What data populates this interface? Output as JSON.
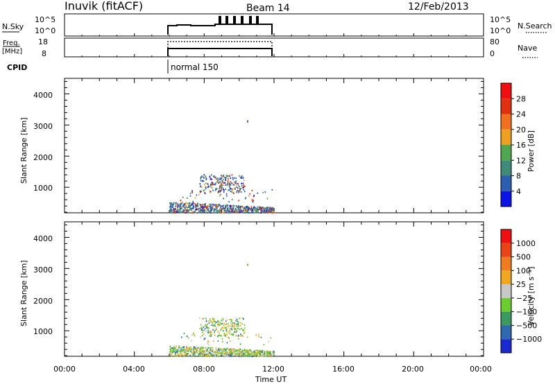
{
  "header": {
    "title_left": "Inuvik (fitACF)",
    "title_center": "Beam 14",
    "title_right": "12/Feb/2013"
  },
  "small_panels": {
    "sky": {
      "left_label": "N.Sky",
      "right_label": "N.Search",
      "left_ticks": [
        "10^5",
        "10^0"
      ],
      "right_ticks": [
        "10^5",
        "10^0"
      ]
    },
    "freq": {
      "left_label_line1": "Freq.",
      "left_label_line2": "[MHz]",
      "right_label": "Nave",
      "left_ticks": [
        "18",
        "8"
      ],
      "right_ticks": [
        "80",
        "0"
      ]
    },
    "cpid": {
      "label": "CPID",
      "mode": "normal 150"
    }
  },
  "chart_data": [
    {
      "type": "heatmap",
      "name": "power",
      "ylabel": "Slant Range [km]",
      "xlabel": "",
      "y_ticks": [
        "1000",
        "2000",
        "3000",
        "4000"
      ],
      "ylim": [
        180,
        4500
      ],
      "colorbar_label": "Power [dB]",
      "colorbar_ticks": [
        "4",
        "8",
        "12",
        "16",
        "20",
        "24",
        "28"
      ],
      "colorbar_colors": [
        "#0a14e6",
        "#2a5fb0",
        "#3f8a7a",
        "#4fa84f",
        "#f0a020",
        "#f07020",
        "#e03010",
        "#ee1010"
      ]
    },
    {
      "type": "heatmap",
      "name": "velocity",
      "ylabel": "Slant Range [km]",
      "xlabel": "Time UT",
      "y_ticks": [
        "1000",
        "2000",
        "3000",
        "4000"
      ],
      "ylim": [
        180,
        4500
      ],
      "colorbar_label": "Velocity [m s⁻¹]",
      "colorbar_ticks": [
        "1000",
        "500",
        "100",
        "25",
        "−25",
        "−100",
        "−500",
        "−1000"
      ],
      "colorbar_colors": [
        "#1a2ad0",
        "#2f6ab0",
        "#3a9a60",
        "#6ccd30",
        "#c8c8c8",
        "#f0a820",
        "#f07c20",
        "#e84418",
        "#ee1010"
      ]
    }
  ],
  "x_axis": {
    "ticks": [
      "00:00",
      "04:00",
      "08:00",
      "12:00",
      "16:00",
      "20:00",
      "00:00"
    ]
  }
}
